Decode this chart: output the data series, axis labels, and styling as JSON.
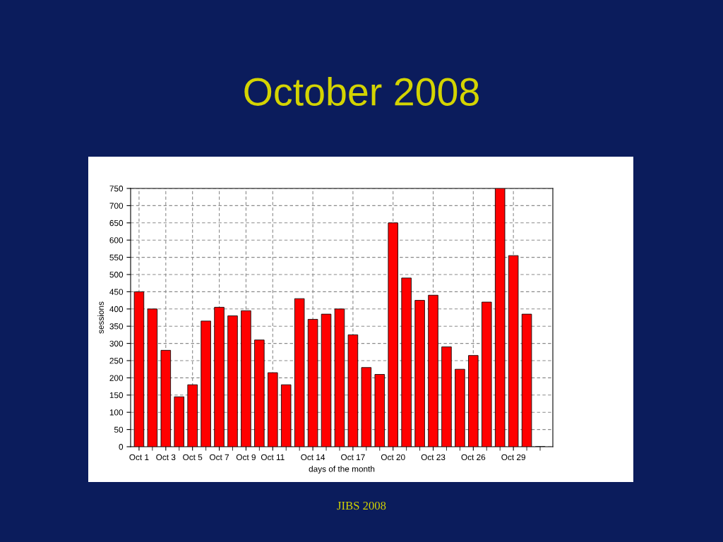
{
  "chart_data": {
    "type": "bar",
    "title": "October 2008",
    "xlabel": "days of the month",
    "ylabel": "sessions",
    "annotations": [
      "JIBS 2008"
    ],
    "categories": [
      "Oct 1",
      null,
      "Oct 3",
      null,
      "Oct 5",
      null,
      "Oct 7",
      null,
      "Oct 9",
      null,
      "Oct 11",
      null,
      null,
      "Oct 14",
      null,
      null,
      "Oct 17",
      null,
      null,
      "Oct 20",
      null,
      null,
      "Oct 23",
      null,
      null,
      "Oct 26",
      null,
      null,
      "Oct 29",
      null,
      null
    ],
    "values": [
      450,
      400,
      280,
      145,
      180,
      365,
      405,
      380,
      395,
      310,
      215,
      180,
      430,
      370,
      385,
      400,
      325,
      230,
      210,
      650,
      490,
      425,
      440,
      290,
      225,
      265,
      420,
      750,
      555,
      385,
      0
    ],
    "color": "#ff0000",
    "ylim": [
      0,
      750
    ],
    "yticks": [
      0,
      50,
      100,
      150,
      200,
      250,
      300,
      350,
      400,
      450,
      500,
      550,
      600,
      650,
      700,
      750
    ],
    "grid": true
  }
}
